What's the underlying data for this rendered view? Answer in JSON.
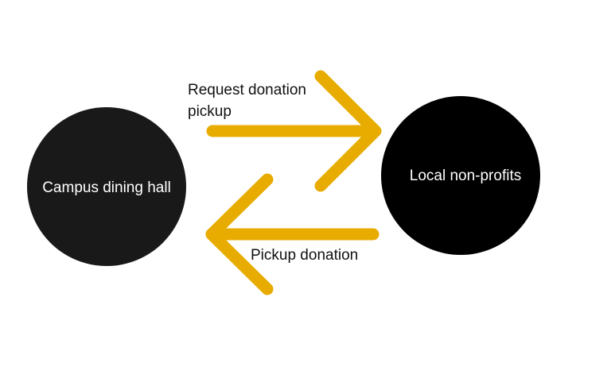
{
  "diagram": {
    "nodes": [
      {
        "id": "dining",
        "label": "Campus dining hall",
        "fill": "#1a1919"
      },
      {
        "id": "nonprofits",
        "label": "Local non-profits",
        "fill": "#000000"
      }
    ],
    "edges": [
      {
        "from": "dining",
        "to": "nonprofits",
        "label_lines": [
          "Request donation",
          "pickup"
        ]
      },
      {
        "from": "nonprofits",
        "to": "dining",
        "label_lines": [
          "Pickup donation"
        ]
      }
    ],
    "colors": {
      "arrow": "#e8ac00",
      "background": "#ffffff"
    }
  }
}
